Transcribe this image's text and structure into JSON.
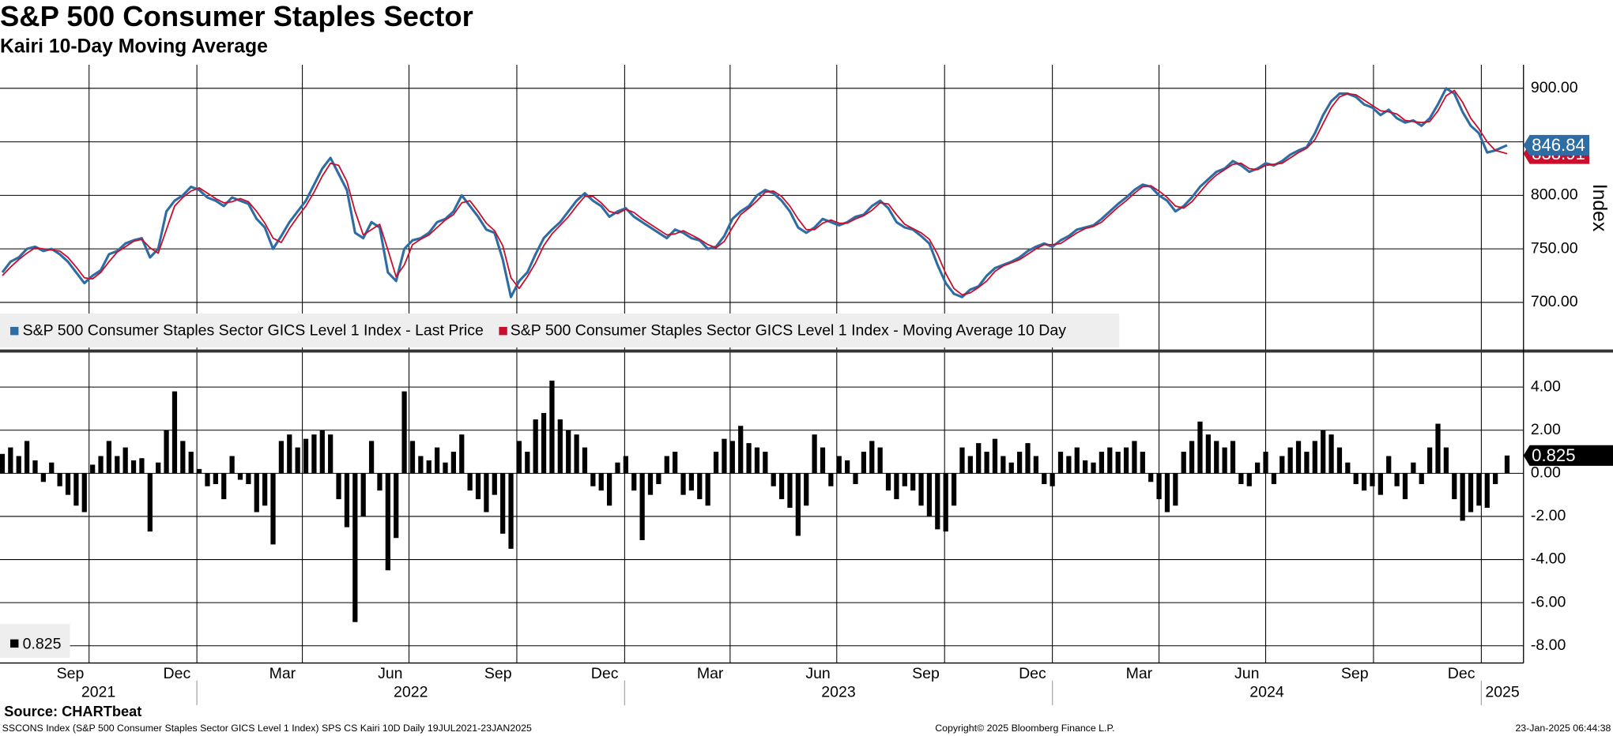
{
  "chart_data": {
    "type": "line",
    "title": "S&P 500 Consumer Staples Sector",
    "subtitle": "Kairi 10-Day Moving Average",
    "ylabel": "Index",
    "grid": true,
    "xlim": [
      "2021-07-17",
      "2025-02-06"
    ],
    "ylim": [
      656,
      922
    ],
    "yticks": [
      {
        "value": 700,
        "label": "700.00"
      },
      {
        "value": 750,
        "label": "750.00"
      },
      {
        "value": 800,
        "label": "800.00"
      },
      {
        "value": 850,
        "label": "850.00"
      },
      {
        "value": 900,
        "label": "900.00"
      }
    ],
    "y2lim": [
      -8.8,
      5.6
    ],
    "y2ticks": [
      {
        "value": 4,
        "label": "4.00"
      },
      {
        "value": 2,
        "label": "2.00"
      },
      {
        "value": 0,
        "label": "0.00"
      },
      {
        "value": -2,
        "label": "-2.00"
      },
      {
        "value": -4,
        "label": "-4.00"
      },
      {
        "value": -6,
        "label": "-6.00"
      },
      {
        "value": -8,
        "label": "-8.00"
      }
    ],
    "xticks": [
      {
        "value": "2021-09",
        "label": "Sep"
      },
      {
        "value": "2021-12",
        "label": "Dec"
      },
      {
        "value": "2022-03",
        "label": "Mar"
      },
      {
        "value": "2022-06",
        "label": "Jun"
      },
      {
        "value": "2022-09",
        "label": "Sep"
      },
      {
        "value": "2022-12",
        "label": "Dec"
      },
      {
        "value": "2023-03",
        "label": "Mar"
      },
      {
        "value": "2023-06",
        "label": "Jun"
      },
      {
        "value": "2023-09",
        "label": "Sep"
      },
      {
        "value": "2023-12",
        "label": "Dec"
      },
      {
        "value": "2024-03",
        "label": "Mar"
      },
      {
        "value": "2024-06",
        "label": "Jun"
      },
      {
        "value": "2024-09",
        "label": "Sep"
      },
      {
        "value": "2024-12",
        "label": "Dec"
      }
    ],
    "years": [
      "2021",
      "2022",
      "2023",
      "2024",
      "2025"
    ],
    "x": [
      "2021-07-19",
      "2021-07-26",
      "2021-08-02",
      "2021-08-09",
      "2021-08-16",
      "2021-08-23",
      "2021-08-30",
      "2021-09-06",
      "2021-09-13",
      "2021-09-20",
      "2021-09-27",
      "2021-10-04",
      "2021-10-11",
      "2021-10-18",
      "2021-10-25",
      "2021-11-01",
      "2021-11-08",
      "2021-11-15",
      "2021-11-22",
      "2021-11-29",
      "2021-12-06",
      "2021-12-13",
      "2021-12-20",
      "2021-12-27",
      "2022-01-03",
      "2022-01-10",
      "2022-01-17",
      "2022-01-24",
      "2022-01-31",
      "2022-02-07",
      "2022-02-14",
      "2022-02-21",
      "2022-02-28",
      "2022-03-07",
      "2022-03-14",
      "2022-03-21",
      "2022-03-28",
      "2022-04-04",
      "2022-04-11",
      "2022-04-18",
      "2022-04-25",
      "2022-05-02",
      "2022-05-09",
      "2022-05-16",
      "2022-05-23",
      "2022-05-30",
      "2022-06-06",
      "2022-06-13",
      "2022-06-20",
      "2022-06-27",
      "2022-07-04",
      "2022-07-11",
      "2022-07-18",
      "2022-07-25",
      "2022-08-01",
      "2022-08-08",
      "2022-08-15",
      "2022-08-22",
      "2022-08-29",
      "2022-09-05",
      "2022-09-12",
      "2022-09-19",
      "2022-09-26",
      "2022-10-03",
      "2022-10-10",
      "2022-10-17",
      "2022-10-24",
      "2022-10-31",
      "2022-11-07",
      "2022-11-14",
      "2022-11-21",
      "2022-11-28",
      "2022-12-05",
      "2022-12-12",
      "2022-12-19",
      "2022-12-26",
      "2023-01-02",
      "2023-01-09",
      "2023-01-16",
      "2023-01-23",
      "2023-01-30",
      "2023-02-06",
      "2023-02-13",
      "2023-02-20",
      "2023-02-27",
      "2023-03-06",
      "2023-03-13",
      "2023-03-20",
      "2023-03-27",
      "2023-04-03",
      "2023-04-10",
      "2023-04-17",
      "2023-04-24",
      "2023-05-01",
      "2023-05-08",
      "2023-05-15",
      "2023-05-22",
      "2023-05-29",
      "2023-06-05",
      "2023-06-12",
      "2023-06-19",
      "2023-06-26",
      "2023-07-03",
      "2023-07-10",
      "2023-07-17",
      "2023-07-24",
      "2023-07-31",
      "2023-08-07",
      "2023-08-14",
      "2023-08-21",
      "2023-08-28",
      "2023-09-04",
      "2023-09-11",
      "2023-09-18",
      "2023-09-25",
      "2023-10-02",
      "2023-10-09",
      "2023-10-16",
      "2023-10-23",
      "2023-10-30",
      "2023-11-06",
      "2023-11-13",
      "2023-11-20",
      "2023-11-27",
      "2023-12-04",
      "2023-12-11",
      "2023-12-18",
      "2023-12-25",
      "2024-01-01",
      "2024-01-08",
      "2024-01-15",
      "2024-01-22",
      "2024-01-29",
      "2024-02-05",
      "2024-02-12",
      "2024-02-19",
      "2024-02-26",
      "2024-03-04",
      "2024-03-11",
      "2024-03-18",
      "2024-03-25",
      "2024-04-01",
      "2024-04-08",
      "2024-04-15",
      "2024-04-22",
      "2024-04-29",
      "2024-05-06",
      "2024-05-13",
      "2024-05-20",
      "2024-05-27",
      "2024-06-03",
      "2024-06-10",
      "2024-06-17",
      "2024-06-24",
      "2024-07-01",
      "2024-07-08",
      "2024-07-15",
      "2024-07-22",
      "2024-07-29",
      "2024-08-05",
      "2024-08-12",
      "2024-08-19",
      "2024-08-26",
      "2024-09-02",
      "2024-09-09",
      "2024-09-16",
      "2024-09-23",
      "2024-09-30",
      "2024-10-07",
      "2024-10-14",
      "2024-10-21",
      "2024-10-28",
      "2024-11-04",
      "2024-11-11",
      "2024-11-18",
      "2024-11-25",
      "2024-12-02",
      "2024-12-09",
      "2024-12-16",
      "2024-12-23",
      "2024-12-30",
      "2025-01-06",
      "2025-01-13",
      "2025-01-23"
    ],
    "series": [
      {
        "name": "S&P 500 Consumer Staples Sector GICS Level 1 Index - Last Price",
        "color": "#2e6da4",
        "values": [
          728,
          738,
          742,
          750,
          752,
          748,
          750,
          745,
          738,
          728,
          718,
          725,
          730,
          745,
          748,
          755,
          758,
          760,
          742,
          750,
          785,
          795,
          800,
          808,
          805,
          798,
          795,
          790,
          798,
          795,
          792,
          778,
          770,
          750,
          762,
          775,
          785,
          795,
          810,
          825,
          835,
          820,
          805,
          765,
          760,
          775,
          770,
          728,
          720,
          750,
          758,
          760,
          765,
          775,
          778,
          785,
          800,
          790,
          780,
          768,
          765,
          740,
          705,
          720,
          728,
          745,
          760,
          768,
          775,
          785,
          795,
          802,
          795,
          790,
          780,
          785,
          788,
          780,
          775,
          770,
          765,
          760,
          768,
          765,
          760,
          758,
          750,
          752,
          762,
          778,
          785,
          790,
          800,
          805,
          802,
          795,
          785,
          770,
          765,
          770,
          778,
          775,
          772,
          775,
          780,
          782,
          790,
          795,
          788,
          775,
          770,
          768,
          762,
          755,
          735,
          718,
          708,
          705,
          712,
          715,
          725,
          732,
          735,
          738,
          742,
          748,
          752,
          755,
          752,
          758,
          762,
          768,
          770,
          772,
          778,
          785,
          792,
          798,
          805,
          810,
          808,
          800,
          795,
          785,
          790,
          798,
          808,
          815,
          822,
          825,
          832,
          828,
          822,
          825,
          830,
          828,
          832,
          838,
          842,
          845,
          858,
          875,
          888,
          895,
          895,
          892,
          885,
          882,
          875,
          880,
          872,
          868,
          870,
          865,
          872,
          885,
          900,
          895,
          878,
          865,
          858,
          840,
          842,
          846.84
        ]
      },
      {
        "name": "S&P 500 Consumer Staples Sector GICS Level 1 Index - Moving Average 10 Day",
        "color": "#c8102e",
        "values": [
          725,
          733,
          740,
          746,
          751,
          750,
          749,
          748,
          742,
          733,
          723,
          722,
          728,
          738,
          747,
          752,
          757,
          759,
          751,
          746,
          768,
          790,
          798,
          804,
          807,
          802,
          797,
          793,
          794,
          797,
          794,
          785,
          774,
          760,
          756,
          769,
          780,
          790,
          803,
          818,
          830,
          828,
          813,
          785,
          763,
          768,
          773,
          749,
          724,
          735,
          754,
          759,
          763,
          770,
          777,
          782,
          793,
          795,
          785,
          774,
          767,
          753,
          723,
          713,
          724,
          737,
          753,
          764,
          772,
          780,
          790,
          799,
          799,
          793,
          785,
          783,
          787,
          784,
          778,
          773,
          768,
          763,
          764,
          767,
          763,
          759,
          754,
          751,
          757,
          770,
          782,
          788,
          795,
          803,
          804,
          799,
          790,
          778,
          768,
          768,
          774,
          777,
          774,
          774,
          778,
          781,
          786,
          793,
          792,
          782,
          773,
          769,
          765,
          759,
          745,
          727,
          713,
          707,
          709,
          714,
          720,
          729,
          734,
          737,
          740,
          745,
          750,
          754,
          754,
          755,
          760,
          765,
          769,
          771,
          775,
          782,
          789,
          795,
          802,
          808,
          809,
          804,
          798,
          790,
          788,
          794,
          803,
          812,
          819,
          824,
          829,
          830,
          825,
          824,
          828,
          829,
          830,
          835,
          840,
          844,
          852,
          867,
          882,
          892,
          895,
          894,
          889,
          884,
          879,
          878,
          876,
          870,
          869,
          868,
          869,
          879,
          893,
          898,
          887,
          872,
          862,
          850,
          842,
          838.91
        ]
      },
      {
        "type": "bar",
        "axis": "y2",
        "color": "#000000",
        "values": [
          0.9,
          1.2,
          0.8,
          1.5,
          0.6,
          -0.4,
          0.5,
          -0.6,
          -1.0,
          -1.5,
          -1.8,
          0.4,
          0.8,
          1.5,
          0.8,
          1.2,
          0.6,
          0.7,
          -2.7,
          0.5,
          2.0,
          3.8,
          1.5,
          1.0,
          0.2,
          -0.6,
          -0.5,
          -1.2,
          0.8,
          -0.3,
          -0.5,
          -1.8,
          -1.5,
          -3.3,
          1.5,
          1.8,
          1.2,
          1.6,
          1.8,
          2.0,
          1.8,
          -1.2,
          -2.5,
          -6.9,
          -2.0,
          1.5,
          -0.8,
          -4.5,
          -3.0,
          3.8,
          1.5,
          0.8,
          0.6,
          1.2,
          0.5,
          1.0,
          1.8,
          -0.8,
          -1.2,
          -1.8,
          -1.0,
          -2.8,
          -3.5,
          1.5,
          1.0,
          2.5,
          2.8,
          4.3,
          2.5,
          2.0,
          1.8,
          1.2,
          -0.6,
          -0.8,
          -1.5,
          0.5,
          0.8,
          -0.8,
          -3.1,
          -1.0,
          -0.5,
          0.8,
          1.0,
          -1.0,
          -0.8,
          -1.2,
          -1.5,
          1.0,
          1.6,
          1.5,
          2.2,
          1.4,
          1.2,
          1.0,
          -0.6,
          -1.2,
          -1.6,
          -2.9,
          -1.5,
          1.8,
          1.2,
          -0.6,
          0.8,
          0.6,
          -0.5,
          1.0,
          1.5,
          1.2,
          -0.8,
          -1.2,
          -0.6,
          -0.8,
          -1.5,
          -2.0,
          -2.6,
          -2.7,
          -1.5,
          1.2,
          0.8,
          1.4,
          1.0,
          1.6,
          0.8,
          0.5,
          1.0,
          1.4,
          0.8,
          -0.5,
          -0.6,
          1.0,
          0.8,
          1.2,
          0.6,
          0.5,
          1.0,
          1.2,
          1.0,
          1.2,
          1.5,
          1.0,
          -0.4,
          -1.2,
          -1.8,
          -1.5,
          1.0,
          1.5,
          2.4,
          1.8,
          1.5,
          1.2,
          1.5,
          -0.5,
          -0.6,
          0.5,
          1.0,
          -0.5,
          0.8,
          1.2,
          1.5,
          1.0,
          1.5,
          2.0,
          1.8,
          1.2,
          0.5,
          -0.5,
          -0.8,
          -0.6,
          -1.0,
          0.8,
          -0.6,
          -1.2,
          0.5,
          -0.5,
          1.2,
          2.3,
          1.2,
          -1.2,
          -2.2,
          -1.8,
          -1.5,
          -1.6,
          -0.5,
          0.825
        ]
      }
    ]
  },
  "source": "Source: CHARTbeat",
  "footer": {
    "left": "SSCONS Index (S&P 500 Consumer Staples Sector GICS Level 1 Index) SPS CS Kairi 10D  Daily 19JUL2021-23JAN2025",
    "center": "Copyright© 2025 Bloomberg Finance L.P.",
    "right": "23-Jan-2025 06:44:38"
  }
}
